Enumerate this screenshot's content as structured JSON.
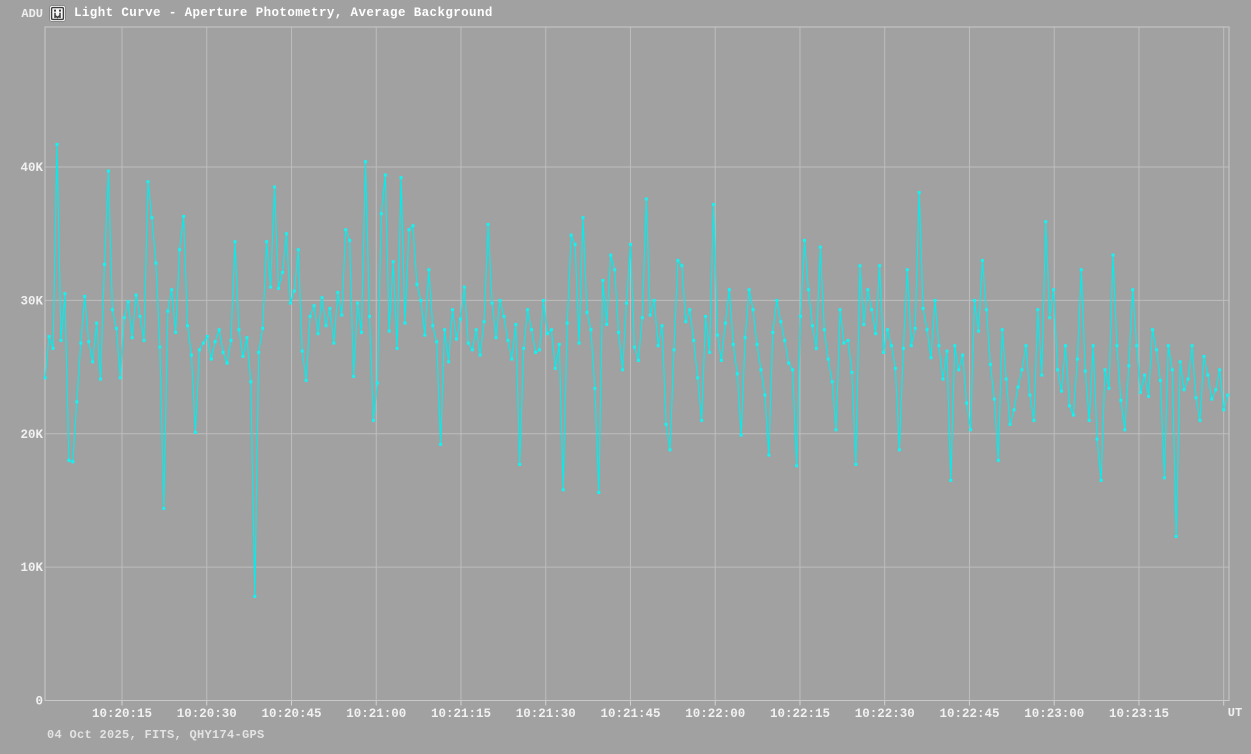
{
  "header": {
    "title": "Light Curve - Aperture Photometry, Average Background",
    "icon": "light-curve-app-icon"
  },
  "chart_data": {
    "type": "line",
    "title": "Light Curve - Aperture Photometry, Average Background",
    "footer": "04 Oct 2025, FITS, QHY174-GPS",
    "legend": "none",
    "grid": "on",
    "line_color": "#0be9e9",
    "marker_color": "#16f1f1",
    "background_color": "#a1a1a1",
    "grid_color": "#bdbdbd",
    "y_axis": {
      "unit": "ADU",
      "min": 0,
      "max": 50500,
      "ticks": [
        {
          "v": 0,
          "label": "0"
        },
        {
          "v": 10000,
          "label": "10K"
        },
        {
          "v": 20000,
          "label": "20K"
        },
        {
          "v": 30000,
          "label": "30K"
        },
        {
          "v": 40000,
          "label": "40K"
        }
      ]
    },
    "x_axis": {
      "unit": "UT",
      "ticks": [
        {
          "t": "10:20:15",
          "label": "10:20:15"
        },
        {
          "t": "10:20:30",
          "label": "10:20:30"
        },
        {
          "t": "10:20:45",
          "label": "10:20:45"
        },
        {
          "t": "10:21:00",
          "label": "10:21:00"
        },
        {
          "t": "10:21:15",
          "label": "10:21:15"
        },
        {
          "t": "10:21:30",
          "label": "10:21:30"
        },
        {
          "t": "10:21:45",
          "label": "10:21:45"
        },
        {
          "t": "10:22:00",
          "label": "10:22:00"
        },
        {
          "t": "10:22:15",
          "label": "10:22:15"
        },
        {
          "t": "10:22:30",
          "label": "10:22:30"
        },
        {
          "t": "10:22:45",
          "label": "10:22:45"
        },
        {
          "t": "10:23:00",
          "label": "10:23:00"
        },
        {
          "t": "10:23:15",
          "label": "10:23:15"
        },
        {
          "t": "10:23:30",
          "label": ""
        }
      ]
    },
    "series": [
      {
        "name": "average-background-adu",
        "start_time": "10:20:01.4",
        "cadence_s": 0.7,
        "values": [
          24200,
          27300,
          26400,
          41700,
          27000,
          30500,
          18000,
          17900,
          22400,
          26800,
          30300,
          26900,
          25400,
          28300,
          24100,
          32700,
          39700,
          29300,
          27900,
          24200,
          28700,
          29900,
          27200,
          30400,
          28800,
          27000,
          38900,
          36200,
          32800,
          26500,
          14400,
          29200,
          30800,
          27600,
          33800,
          36300,
          28100,
          25900,
          20100,
          26300,
          26800,
          27300,
          25600,
          26900,
          27800,
          26100,
          25300,
          27000,
          34400,
          27800,
          25800,
          27200,
          23900,
          7800,
          26100,
          27900,
          34400,
          31000,
          38500,
          30900,
          32100,
          35000,
          29800,
          30700,
          33800,
          26200,
          24000,
          28800,
          29600,
          27500,
          30200,
          28100,
          29400,
          26800,
          30600,
          28900,
          35300,
          34500,
          24300,
          29800,
          27600,
          40400,
          28800,
          21000,
          23800,
          36500,
          39400,
          27700,
          32900,
          26400,
          39200,
          28300,
          35300,
          35600,
          31200,
          30000,
          27400,
          32300,
          28100,
          26900,
          19200,
          27800,
          25400,
          29300,
          27100,
          28600,
          31000,
          26800,
          26300,
          27800,
          25900,
          28400,
          35700,
          29800,
          27200,
          30000,
          28800,
          27000,
          25600,
          28200,
          17700,
          26400,
          29300,
          27800,
          26100,
          26300,
          30000,
          27500,
          27800,
          24900,
          26700,
          15800,
          28300,
          34900,
          34200,
          26800,
          36200,
          29100,
          27800,
          23400,
          15600,
          31500,
          28200,
          33400,
          32300,
          27600,
          24800,
          29800,
          34200,
          26500,
          25500,
          28700,
          37600,
          28900,
          30000,
          26600,
          28100,
          20700,
          18800,
          26300,
          33000,
          32600,
          28400,
          29300,
          27000,
          24200,
          21000,
          28800,
          26100,
          37200,
          27400,
          25500,
          28300,
          30800,
          26700,
          24500,
          19900,
          27200,
          30800,
          29300,
          26700,
          24800,
          22900,
          18400,
          27600,
          30000,
          28400,
          27000,
          25300,
          24800,
          17600,
          28800,
          34500,
          30800,
          28100,
          26400,
          34000,
          27800,
          25600,
          23900,
          20300,
          29300,
          26800,
          27000,
          24600,
          17700,
          32600,
          28200,
          30800,
          29300,
          27500,
          32600,
          26100,
          27800,
          26600,
          24900,
          18800,
          26400,
          32300,
          26600,
          27900,
          38100,
          29400,
          27800,
          25700,
          30000,
          26600,
          24100,
          26200,
          16500,
          26600,
          24800,
          25900,
          22300,
          20300,
          30000,
          27700,
          33000,
          29300,
          25200,
          22600,
          18000,
          27800,
          24100,
          20700,
          21800,
          23500,
          24800,
          26600,
          22900,
          21000,
          29300,
          24400,
          35900,
          28700,
          30800,
          24800,
          23200,
          26600,
          22100,
          21400,
          25600,
          32300,
          24700,
          21000,
          26600,
          19600,
          16500,
          24800,
          23400,
          33400,
          26600,
          22500,
          20300,
          25100,
          30800,
          26600,
          23100,
          24400,
          22800,
          27800,
          26300,
          24000,
          16700,
          26600,
          24800,
          12300,
          25400,
          23300,
          24100,
          26600,
          22700,
          21000,
          25800,
          24400,
          22600,
          23300,
          24800,
          21800,
          22900
        ]
      }
    ]
  }
}
